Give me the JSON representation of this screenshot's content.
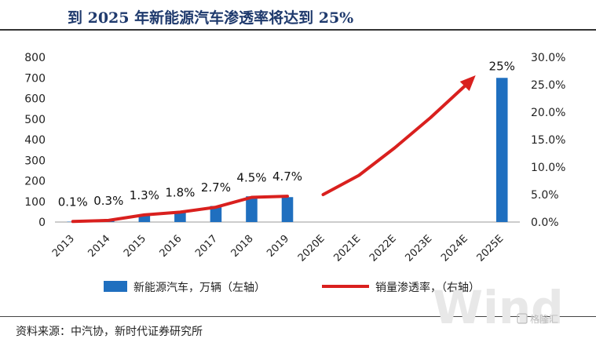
{
  "header": {
    "title": "到 2025 年新能源汽车渗透率将达到 25%"
  },
  "footer": {
    "source": "资料来源：中汽协，新时代证券研究所",
    "watermark": "Wind",
    "logo_text": "格隆汇"
  },
  "chart_data": {
    "type": "bar",
    "title": "到 2025 年新能源汽车渗透率将达到 25%",
    "categories": [
      "2013",
      "2014",
      "2015",
      "2016",
      "2017",
      "2018",
      "2019",
      "2020E",
      "2021E",
      "2022E",
      "2023E",
      "2024E",
      "2025E"
    ],
    "y_left": {
      "ticks": [
        0,
        100,
        200,
        300,
        400,
        500,
        600,
        700,
        800
      ],
      "ylim": [
        0,
        800
      ]
    },
    "y_right": {
      "ticks": [
        "0.0%",
        "5.0%",
        "10.0%",
        "15.0%",
        "20.0%",
        "25.0%",
        "30.0%"
      ],
      "ylim": [
        0,
        0.3
      ]
    },
    "series": [
      {
        "name": "新能源汽车，万辆（左轴）",
        "axis": "left",
        "type": "bar",
        "color": "#1f6fbf",
        "values": [
          1.8,
          7.5,
          33,
          51,
          78,
          125,
          121,
          null,
          null,
          null,
          null,
          null,
          700
        ]
      },
      {
        "name": "销量渗透率，（右轴）",
        "axis": "right",
        "type": "line",
        "color": "#d9201e",
        "values": [
          0.001,
          0.003,
          0.013,
          0.018,
          0.027,
          0.045,
          0.047,
          0.05,
          0.085,
          0.135,
          0.19,
          0.25,
          0.25
        ]
      }
    ],
    "data_labels": [
      "0.1%",
      "0.3%",
      "1.3%",
      "1.8%",
      "2.7%",
      "4.5%",
      "4.7%",
      null,
      null,
      null,
      null,
      null,
      "25%"
    ],
    "legend": {
      "position": "bottom"
    }
  }
}
